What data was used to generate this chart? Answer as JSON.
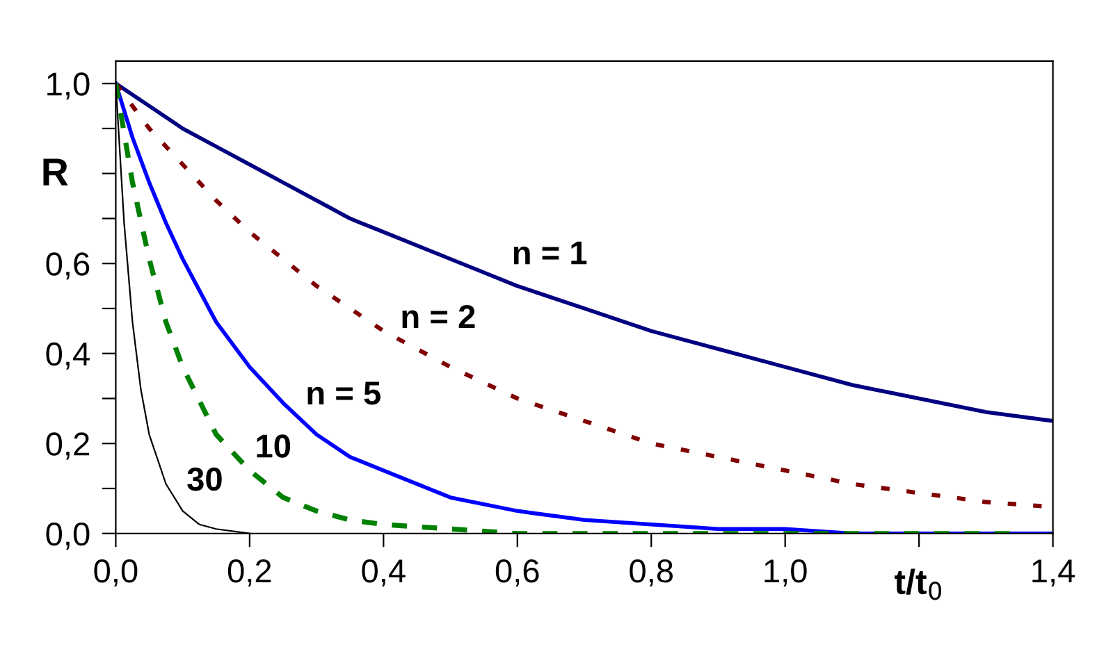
{
  "chart_data": {
    "type": "line",
    "xlabel": "t/t$_{0}$",
    "ylabel": "R",
    "xlim": [
      0,
      1.4
    ],
    "ylim": [
      0,
      1.05
    ],
    "xticks": [
      {
        "value": 0,
        "label": "0,0"
      },
      {
        "value": 0.2,
        "label": "0,2"
      },
      {
        "value": 0.4,
        "label": "0,4"
      },
      {
        "value": 0.6,
        "label": "0,6"
      },
      {
        "value": 0.8,
        "label": "0,8"
      },
      {
        "value": 1.0,
        "label": "1,0"
      },
      {
        "value": 1.2,
        "label": null
      },
      {
        "value": 1.4,
        "label": "1,4"
      }
    ],
    "yticks": [
      {
        "value": 0,
        "label": "0,0"
      },
      {
        "value": 0.1,
        "label": null
      },
      {
        "value": 0.2,
        "label": "0,2"
      },
      {
        "value": 0.3,
        "label": null
      },
      {
        "value": 0.4,
        "label": "0,4"
      },
      {
        "value": 0.5,
        "label": null
      },
      {
        "value": 0.6,
        "label": "0,6"
      },
      {
        "value": 0.7,
        "label": null
      },
      {
        "value": 0.8,
        "label": null
      },
      {
        "value": 0.9,
        "label": null
      },
      {
        "value": 1.0,
        "label": "1,0"
      }
    ],
    "grid": false,
    "legend": false,
    "marker": "none",
    "series": [
      {
        "color": "#000080",
        "line_style": "solid",
        "x": [
          0,
          0.05,
          0.1,
          0.15,
          0.2,
          0.25,
          0.3,
          0.35,
          0.4,
          0.5,
          0.6,
          0.7,
          0.8,
          0.9,
          1.0,
          1.1,
          1.2,
          1.3,
          1.4
        ],
        "values": [
          1,
          0.95,
          0.9,
          0.86,
          0.82,
          0.78,
          0.74,
          0.7,
          0.67,
          0.61,
          0.55,
          0.5,
          0.45,
          0.41,
          0.37,
          0.33,
          0.3,
          0.27,
          0.25
        ]
      },
      {
        "color": "#800000",
        "line_style": "dotted",
        "x": [
          0,
          0.05,
          0.1,
          0.15,
          0.2,
          0.25,
          0.3,
          0.35,
          0.4,
          0.5,
          0.6,
          0.7,
          0.8,
          0.9,
          1.0,
          1.1,
          1.2,
          1.3,
          1.39
        ],
        "values": [
          1,
          0.9,
          0.82,
          0.74,
          0.67,
          0.61,
          0.55,
          0.5,
          0.45,
          0.37,
          0.3,
          0.25,
          0.2,
          0.17,
          0.14,
          0.11,
          0.09,
          0.07,
          0.06
        ]
      },
      {
        "color": "#0000ff",
        "line_style": "solid",
        "x": [
          0,
          0.025,
          0.05,
          0.075,
          0.1,
          0.15,
          0.2,
          0.25,
          0.3,
          0.35,
          0.4,
          0.5,
          0.6,
          0.7,
          0.8,
          0.9,
          1.0,
          1.1,
          1.2,
          1.3,
          1.4
        ],
        "values": [
          1,
          0.88,
          0.78,
          0.69,
          0.61,
          0.47,
          0.37,
          0.29,
          0.22,
          0.17,
          0.14,
          0.08,
          0.05,
          0.03,
          0.02,
          0.01,
          0.01,
          0,
          0,
          0,
          0
        ]
      },
      {
        "color": "#008000",
        "line_style": "dashed",
        "x": [
          0,
          0.025,
          0.05,
          0.075,
          0.1,
          0.15,
          0.2,
          0.25,
          0.3,
          0.35,
          0.4,
          0.5,
          0.6,
          0.8,
          1.0,
          1.2,
          1.35
        ],
        "values": [
          1,
          0.78,
          0.61,
          0.47,
          0.37,
          0.22,
          0.14,
          0.08,
          0.05,
          0.03,
          0.02,
          0.01,
          0,
          0,
          0,
          0,
          0
        ]
      },
      {
        "color": "#000000",
        "line_style": "solid",
        "x": [
          0,
          0.0125,
          0.025,
          0.0375,
          0.05,
          0.075,
          0.1,
          0.125,
          0.15,
          0.2
        ],
        "values": [
          1,
          0.69,
          0.47,
          0.32,
          0.22,
          0.11,
          0.05,
          0.02,
          0.01,
          0
        ]
      }
    ],
    "annotations": [
      "n = 1",
      "n = 2",
      "n = 5",
      "10",
      "30"
    ]
  }
}
